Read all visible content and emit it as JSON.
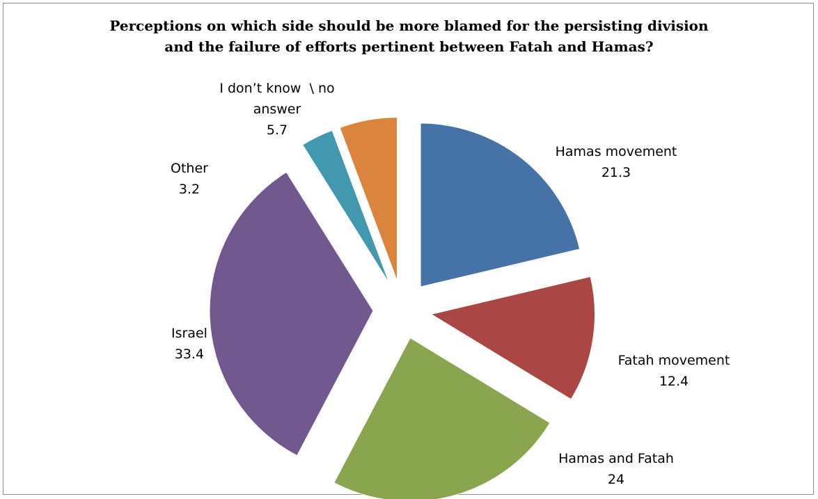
{
  "chart_data": {
    "type": "pie",
    "title": "Perceptions on which side should be more blamed for the persisting division and the failure of efforts pertinent between Fatah and Hamas?",
    "title_lines": [
      "Perceptions on which side should be more blamed for the persisting division",
      "and the failure of efforts pertinent between Fatah and Hamas?"
    ],
    "exploded": true,
    "start_angle_deg_clockwise_from_top": 0,
    "slices": [
      {
        "label": "Hamas movement",
        "label_lines": [
          "Hamas movement"
        ],
        "value": 21.3,
        "value_text": "21.3",
        "color": "#4572A7"
      },
      {
        "label": "Fatah movement",
        "label_lines": [
          "Fatah movement"
        ],
        "value": 12.4,
        "value_text": "12.4",
        "color": "#AA4643"
      },
      {
        "label": "Hamas and Fatah",
        "label_lines": [
          "Hamas and Fatah"
        ],
        "value": 24,
        "value_text": "24",
        "color": "#89A54E"
      },
      {
        "label": "Israel",
        "label_lines": [
          "Israel"
        ],
        "value": 33.4,
        "value_text": "33.4",
        "color": "#71588F"
      },
      {
        "label": "Other",
        "label_lines": [
          "Other"
        ],
        "value": 3.2,
        "value_text": "3.2",
        "color": "#4198AF"
      },
      {
        "label": "I don’t know \\ no answer",
        "label_lines": [
          "I don’t know  \\ no",
          "answer"
        ],
        "value": 5.7,
        "value_text": "5.7",
        "color": "#DB843D"
      }
    ]
  }
}
